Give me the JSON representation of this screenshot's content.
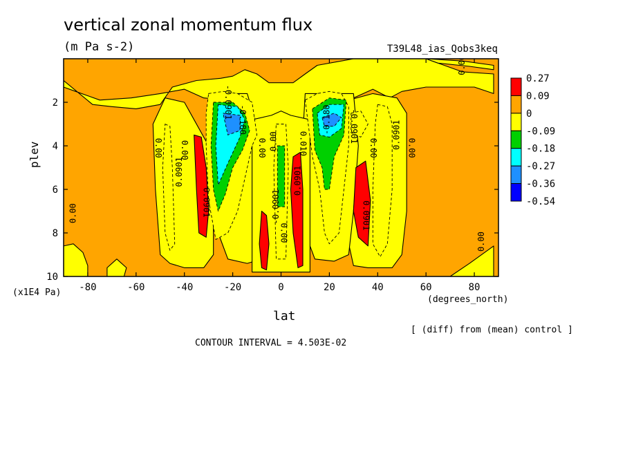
{
  "header": {
    "title": "vertical zonal momentum flux",
    "units": "(m Pa s-2)",
    "experiment": "T39L48_ias_Qobs3keq"
  },
  "footer": {
    "diff_note": "[ (diff) from (mean) control ]",
    "contour_interval": "CONTOUR INTERVAL = 4.503E-02"
  },
  "chart_data": {
    "type": "heatmap",
    "title": "vertical zonal momentum flux",
    "subtitle": "(m Pa s-2)",
    "xlabel": "lat",
    "xunits": "(degrees_north)",
    "ylabel": "plev",
    "yunits": "(x1E4 Pa)",
    "xlim": [
      -90,
      90
    ],
    "ylim": [
      10,
      0
    ],
    "y_inverted": true,
    "x_ticks": [
      -80,
      -60,
      -40,
      -20,
      0,
      20,
      40,
      60,
      80
    ],
    "y_ticks": [
      2,
      4,
      6,
      8,
      10
    ],
    "colorbar": {
      "levels": [
        "0.27",
        "0.09",
        "0",
        "-0.09",
        "-0.18",
        "-0.27",
        "-0.36",
        "-0.54"
      ],
      "colors": [
        "#ff0000",
        "#ffa500",
        "#ffff00",
        "#00d000",
        "#00ffff",
        "#1e90ff",
        "#0000ff"
      ]
    },
    "background": "#ffa500",
    "regions": [
      {
        "label": "yellow upper band",
        "level": "0",
        "points": [
          [
            -90,
            1.0
          ],
          [
            -78,
            2.1
          ],
          [
            -70,
            2.2
          ],
          [
            -60,
            2.3
          ],
          [
            -50,
            2.1
          ],
          [
            -45,
            1.3
          ],
          [
            -35,
            1.0
          ],
          [
            -25,
            0.9
          ],
          [
            -20,
            0.8
          ],
          [
            -15,
            0.5
          ],
          [
            -10,
            0.7
          ],
          [
            -5,
            1.1
          ],
          [
            5,
            1.1
          ],
          [
            10,
            0.7
          ],
          [
            15,
            0.3
          ],
          [
            25,
            0.1
          ],
          [
            30,
            0
          ],
          [
            60,
            0
          ],
          [
            75,
            0.6
          ],
          [
            88,
            0.7
          ],
          [
            88,
            1.6
          ],
          [
            80,
            1.3
          ],
          [
            70,
            1.3
          ],
          [
            60,
            1.3
          ],
          [
            50,
            1.5
          ],
          [
            45,
            1.8
          ],
          [
            38,
            1.4
          ],
          [
            30,
            1.8
          ],
          [
            22,
            1.9
          ],
          [
            15,
            2.2
          ],
          [
            10,
            3.0
          ],
          [
            5,
            3.2
          ],
          [
            -5,
            3.2
          ],
          [
            -10,
            3.0
          ],
          [
            -15,
            2.2
          ],
          [
            -22,
            1.9
          ],
          [
            -32,
            1.8
          ],
          [
            -40,
            1.4
          ],
          [
            -50,
            1.6
          ],
          [
            -62,
            1.8
          ],
          [
            -75,
            1.9
          ],
          [
            -85,
            1.5
          ],
          [
            -90,
            1.3
          ]
        ]
      },
      {
        "label": "yellow right upper",
        "level": "0",
        "points": [
          [
            60,
            0
          ],
          [
            75,
            0.1
          ],
          [
            88,
            0.3
          ],
          [
            88,
            0.5
          ],
          [
            78,
            0.35
          ],
          [
            65,
            0.2
          ]
        ]
      },
      {
        "label": "yellow SH column",
        "level": "0",
        "points": [
          [
            -48,
            1.8
          ],
          [
            -40,
            2.0
          ],
          [
            -36,
            2.8
          ],
          [
            -30,
            4.0
          ],
          [
            -28,
            6.5
          ],
          [
            -28,
            9.0
          ],
          [
            -32,
            9.6
          ],
          [
            -40,
            9.6
          ],
          [
            -46,
            9.4
          ],
          [
            -50,
            9.0
          ],
          [
            -52,
            6.0
          ],
          [
            -53,
            3.0
          ]
        ]
      },
      {
        "label": "yellow NH column",
        "level": "0",
        "points": [
          [
            28,
            1.9
          ],
          [
            38,
            1.6
          ],
          [
            48,
            1.8
          ],
          [
            52,
            2.5
          ],
          [
            52,
            7.0
          ],
          [
            50,
            9.0
          ],
          [
            46,
            9.6
          ],
          [
            36,
            9.6
          ],
          [
            30,
            9.5
          ],
          [
            27,
            8.0
          ],
          [
            26,
            5.0
          ]
        ]
      },
      {
        "label": "yellow SH core",
        "level": "0",
        "points": [
          [
            -30,
            1.6
          ],
          [
            -14,
            1.6
          ],
          [
            -9,
            3.5
          ],
          [
            -8,
            8.0
          ],
          [
            -8,
            9.2
          ],
          [
            -14,
            9.4
          ],
          [
            -22,
            9.2
          ],
          [
            -26,
            8.0
          ],
          [
            -27,
            4.0
          ]
        ]
      },
      {
        "label": "yellow NH core",
        "level": "0",
        "points": [
          [
            10,
            1.6
          ],
          [
            30,
            1.6
          ],
          [
            32,
            4.0
          ],
          [
            30,
            7.0
          ],
          [
            28,
            9.0
          ],
          [
            22,
            9.3
          ],
          [
            14,
            9.2
          ],
          [
            10,
            8.0
          ],
          [
            9,
            3.5
          ]
        ]
      },
      {
        "label": "yellow equatorial",
        "level": "0",
        "points": [
          [
            -12,
            2.8
          ],
          [
            -4,
            2.6
          ],
          [
            0,
            2.4
          ],
          [
            4,
            2.6
          ],
          [
            12,
            2.8
          ],
          [
            12,
            9.8
          ],
          [
            -12,
            9.8
          ]
        ]
      },
      {
        "label": "yellow bottom left",
        "level": "0",
        "points": [
          [
            -90,
            8.6
          ],
          [
            -86,
            8.5
          ],
          [
            -82,
            8.9
          ],
          [
            -80,
            9.5
          ],
          [
            -80,
            10
          ],
          [
            -90,
            10
          ]
        ]
      },
      {
        "label": "yellow bottom mid left",
        "level": "0",
        "points": [
          [
            -72,
            9.6
          ],
          [
            -68,
            9.2
          ],
          [
            -64,
            9.6
          ],
          [
            -65,
            10
          ],
          [
            -72,
            10
          ]
        ]
      },
      {
        "label": "yellow bottom right",
        "level": "0",
        "points": [
          [
            70,
            10
          ],
          [
            78,
            9.4
          ],
          [
            88,
            8.6
          ],
          [
            88,
            10
          ]
        ]
      },
      {
        "label": "green SH narrow",
        "level": "-0.09",
        "points": [
          [
            -48,
            3.0
          ],
          [
            -46,
            3.1
          ],
          [
            -45,
            5.0
          ],
          [
            -44,
            8.5
          ],
          [
            -46,
            8.8
          ],
          [
            -48,
            8.0
          ],
          [
            -49,
            5.0
          ]
        ]
      },
      {
        "label": "green SH main",
        "level": "-0.09",
        "points": [
          [
            -30,
            1.6
          ],
          [
            -24,
            1.5
          ],
          [
            -18,
            1.6
          ],
          [
            -12,
            2.0
          ],
          [
            -10,
            3.5
          ],
          [
            -12,
            4.0
          ],
          [
            -15,
            5.5
          ],
          [
            -18,
            7.0
          ],
          [
            -22,
            8.0
          ],
          [
            -27,
            8.3
          ],
          [
            -30,
            6.5
          ],
          [
            -31,
            4.0
          ],
          [
            -31,
            2.5
          ]
        ]
      },
      {
        "label": "green NH main",
        "level": "-0.09",
        "points": [
          [
            10,
            1.9
          ],
          [
            15,
            1.6
          ],
          [
            20,
            1.5
          ],
          [
            25,
            1.6
          ],
          [
            28,
            2.2
          ],
          [
            28,
            4.0
          ],
          [
            26,
            6.0
          ],
          [
            24,
            8.0
          ],
          [
            20,
            8.5
          ],
          [
            18,
            8.0
          ],
          [
            16,
            6.0
          ],
          [
            13,
            4.5
          ]
        ]
      },
      {
        "label": "green NH blob",
        "level": "-0.09",
        "points": [
          [
            29,
            2.5
          ],
          [
            33,
            2.4
          ],
          [
            36,
            3.0
          ],
          [
            33,
            3.6
          ],
          [
            29,
            3.4
          ]
        ]
      },
      {
        "label": "green NH right column",
        "level": "-0.09",
        "points": [
          [
            40,
            2.1
          ],
          [
            44,
            2.2
          ],
          [
            46,
            3.0
          ],
          [
            46,
            6.0
          ],
          [
            44,
            8.5
          ],
          [
            41,
            9.1
          ],
          [
            38,
            8.5
          ],
          [
            38,
            6.0
          ],
          [
            39,
            3.0
          ]
        ]
      },
      {
        "label": "green equatorial",
        "level": "-0.09",
        "points": [
          [
            -2,
            3.0
          ],
          [
            2,
            3.0
          ],
          [
            3,
            5.0
          ],
          [
            2,
            9.2
          ],
          [
            -2,
            9.2
          ],
          [
            -3,
            5.0
          ]
        ]
      },
      {
        "label": "cyan SH",
        "level": "-0.18",
        "points": [
          [
            -28,
            2.0
          ],
          [
            -20,
            2.0
          ],
          [
            -15,
            2.5
          ],
          [
            -13,
            3.3
          ],
          [
            -16,
            4.2
          ],
          [
            -20,
            5.0
          ],
          [
            -23,
            6.2
          ],
          [
            -26,
            7.0
          ],
          [
            -28,
            6.0
          ],
          [
            -29,
            4.0
          ]
        ]
      },
      {
        "label": "cyan NH",
        "level": "-0.18",
        "points": [
          [
            13,
            2.3
          ],
          [
            20,
            1.8
          ],
          [
            27,
            1.9
          ],
          [
            26,
            3.5
          ],
          [
            22,
            4.5
          ],
          [
            20,
            6.0
          ],
          [
            18,
            6.0
          ],
          [
            17,
            5.0
          ],
          [
            14,
            4.2
          ]
        ]
      },
      {
        "label": "cyan equatorial",
        "level": "-0.18",
        "points": [
          [
            -1.5,
            4.0
          ],
          [
            1.5,
            4.0
          ],
          [
            1.5,
            6.8
          ],
          [
            -1.5,
            6.8
          ]
        ]
      },
      {
        "label": "blue SH",
        "level": "-0.27",
        "points": [
          [
            -26,
            2.1
          ],
          [
            -18,
            2.2
          ],
          [
            -15,
            2.8
          ],
          [
            -17,
            3.6
          ],
          [
            -22,
            4.8
          ],
          [
            -26,
            5.8
          ],
          [
            -27,
            4.0
          ]
        ]
      },
      {
        "label": "blue NH",
        "level": "-0.27",
        "points": [
          [
            15,
            2.5
          ],
          [
            20,
            2.1
          ],
          [
            26,
            2.1
          ],
          [
            25,
            3.2
          ],
          [
            20,
            3.6
          ],
          [
            16,
            3.5
          ]
        ]
      },
      {
        "label": "dark blue SH",
        "level": "-0.36",
        "points": [
          [
            -24,
            2.5
          ],
          [
            -17,
            2.6
          ],
          [
            -17,
            3.3
          ],
          [
            -22,
            3.5
          ]
        ]
      },
      {
        "label": "dark blue NH",
        "level": "-0.36",
        "points": [
          [
            17,
            2.7
          ],
          [
            22,
            2.5
          ],
          [
            25,
            2.7
          ],
          [
            22,
            3.1
          ],
          [
            18,
            3.1
          ]
        ]
      },
      {
        "label": "red SH",
        "level": "0.09",
        "points": [
          [
            -36,
            3.5
          ],
          [
            -33,
            3.6
          ],
          [
            -31,
            5.0
          ],
          [
            -30,
            7.0
          ],
          [
            -31,
            8.2
          ],
          [
            -34,
            8.0
          ],
          [
            -35,
            6.0
          ]
        ]
      },
      {
        "label": "red SH equatorial",
        "level": "0.09",
        "points": [
          [
            -8,
            7.0
          ],
          [
            -6,
            7.2
          ],
          [
            -5,
            8.5
          ],
          [
            -6,
            9.7
          ],
          [
            -8,
            9.6
          ],
          [
            -9,
            8.5
          ]
        ]
      },
      {
        "label": "red NH equatorial",
        "level": "0.09",
        "points": [
          [
            5,
            4.5
          ],
          [
            8,
            4.3
          ],
          [
            9,
            6.0
          ],
          [
            9,
            9.5
          ],
          [
            7,
            9.6
          ],
          [
            5,
            8.0
          ],
          [
            4,
            6.0
          ]
        ]
      },
      {
        "label": "red NH",
        "level": "0.09",
        "points": [
          [
            31,
            5.0
          ],
          [
            35,
            4.7
          ],
          [
            37,
            6.5
          ],
          [
            36,
            8.6
          ],
          [
            32,
            8.2
          ],
          [
            30,
            7.0
          ]
        ]
      }
    ],
    "contour_labels": [
      {
        "text": "0.00",
        "lon": 75,
        "lev": 0.3
      },
      {
        "text": "-0.0901",
        "lon": -22,
        "lev": 2.0
      },
      {
        "text": "-0.180",
        "lon": -16,
        "lev": 2.8
      },
      {
        "text": "-0.180",
        "lon": 19,
        "lev": 2.8
      },
      {
        "text": "0.00",
        "lon": -51,
        "lev": 4.1
      },
      {
        "text": "0.00",
        "lon": -40,
        "lev": 4.2
      },
      {
        "text": "0.0901",
        "lon": -42,
        "lev": 5.2
      },
      {
        "text": "0.0901",
        "lon": -31,
        "lev": 6.6
      },
      {
        "text": "0.00",
        "lon": -8,
        "lev": 4.1
      },
      {
        "text": "0.00",
        "lon": -3,
        "lev": 3.8
      },
      {
        "text": "0.010",
        "lon": 9,
        "lev": 3.9
      },
      {
        "text": "0.00",
        "lon": 1,
        "lev": 8.0
      },
      {
        "text": "0.0901",
        "lon": 7,
        "lev": 5.6
      },
      {
        "text": "-0.0901",
        "lon": 30,
        "lev": 3.1
      },
      {
        "text": "0.00",
        "lon": 38,
        "lev": 4.1
      },
      {
        "text": "0.0901",
        "lon": 48,
        "lev": 3.5
      },
      {
        "text": "0.00",
        "lon": 54,
        "lev": 4.1
      },
      {
        "text": "0.0901",
        "lon": 35,
        "lev": 7.2
      },
      {
        "text": "-0.0901",
        "lon": -2,
        "lev": 6.8
      },
      {
        "text": "0.00",
        "lon": -86,
        "lev": 7.1
      },
      {
        "text": "0.00",
        "lon": 83,
        "lev": 8.4
      }
    ]
  }
}
